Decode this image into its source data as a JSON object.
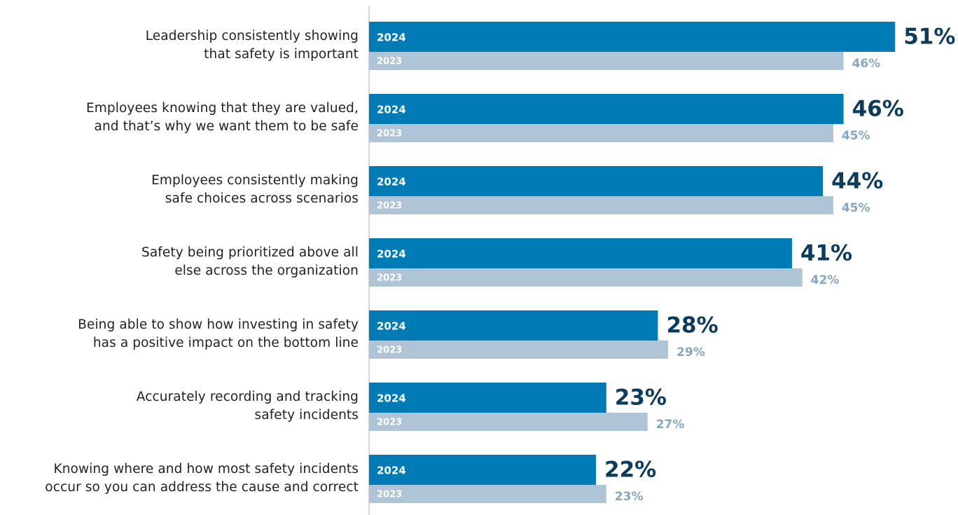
{
  "chart_data": {
    "type": "bar",
    "orientation": "horizontal",
    "categories": [
      "Leadership consistently showing\nthat safety is important",
      "Employees knowing that they are valued,\nand that’s why we want them to be safe",
      "Employees consistently making\nsafe choices across scenarios",
      "Safety being prioritized above all\nelse across the organization",
      "Being able to show how investing in safety\nhas a positive impact on the bottom line",
      "Accurately recording and tracking\nsafety incidents",
      "Knowing where and how most safety incidents\noccur so you can address the cause and correct"
    ],
    "series": [
      {
        "name": "2024",
        "color": "#007bb6",
        "values": [
          51,
          46,
          44,
          41,
          28,
          23,
          22
        ],
        "value_labels": [
          "51%",
          "46%",
          "44%",
          "41%",
          "28%",
          "23%",
          "22%"
        ]
      },
      {
        "name": "2023",
        "color": "#b0c4d8",
        "values": [
          46,
          45,
          45,
          42,
          29,
          27,
          23
        ],
        "value_labels": [
          "46%",
          "45%",
          "45%",
          "42%",
          "29%",
          "27%",
          "23%"
        ]
      }
    ]
  }
}
